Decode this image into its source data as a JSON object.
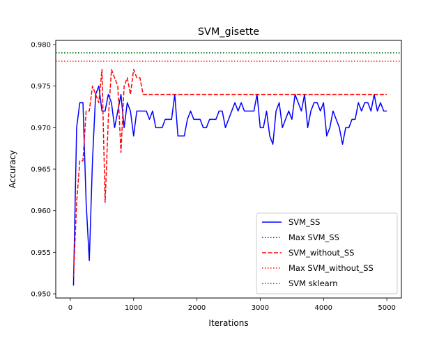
{
  "chart_data": {
    "type": "line",
    "title": "SVM_gisette",
    "xlabel": "Iterations",
    "ylabel": "Accuracy",
    "xlim": [
      -230,
      5230
    ],
    "ylim": [
      0.9495,
      0.9805
    ],
    "xticks": [
      0,
      1000,
      2000,
      3000,
      4000,
      5000
    ],
    "xtick_labels": [
      "0",
      "1000",
      "2000",
      "3000",
      "4000",
      "5000"
    ],
    "yticks": [
      0.95,
      0.955,
      0.96,
      0.965,
      0.97,
      0.975,
      0.98
    ],
    "ytick_labels": [
      "0.950",
      "0.955",
      "0.960",
      "0.965",
      "0.970",
      "0.975",
      "0.980"
    ],
    "grid": false,
    "legend_position": "bottom-right",
    "series": [
      {
        "name": "SVM_SS",
        "style": "solid",
        "color": "#0000ff",
        "x": [
          50,
          100,
          150,
          200,
          250,
          300,
          350,
          400,
          450,
          500,
          550,
          600,
          650,
          700,
          750,
          800,
          850,
          900,
          950,
          1000,
          1050,
          1100,
          1150,
          1200,
          1250,
          1300,
          1350,
          1400,
          1450,
          1500,
          1550,
          1600,
          1650,
          1700,
          1750,
          1800,
          1850,
          1900,
          1950,
          2000,
          2050,
          2100,
          2150,
          2200,
          2250,
          2300,
          2350,
          2400,
          2450,
          2500,
          2550,
          2600,
          2650,
          2700,
          2750,
          2800,
          2850,
          2900,
          2950,
          3000,
          3050,
          3100,
          3150,
          3200,
          3250,
          3300,
          3350,
          3400,
          3450,
          3500,
          3550,
          3600,
          3650,
          3700,
          3750,
          3800,
          3850,
          3900,
          3950,
          4000,
          4050,
          4100,
          4150,
          4200,
          4250,
          4300,
          4350,
          4400,
          4450,
          4500,
          4550,
          4600,
          4650,
          4700,
          4750,
          4800,
          4850,
          4900,
          4950,
          5000
        ],
        "values": [
          0.951,
          0.97,
          0.973,
          0.973,
          0.961,
          0.954,
          0.966,
          0.974,
          0.975,
          0.972,
          0.972,
          0.974,
          0.973,
          0.97,
          0.972,
          0.974,
          0.97,
          0.973,
          0.972,
          0.969,
          0.972,
          0.972,
          0.972,
          0.972,
          0.971,
          0.972,
          0.97,
          0.97,
          0.97,
          0.971,
          0.971,
          0.971,
          0.974,
          0.969,
          0.969,
          0.969,
          0.971,
          0.972,
          0.971,
          0.971,
          0.971,
          0.97,
          0.97,
          0.971,
          0.971,
          0.971,
          0.972,
          0.972,
          0.97,
          0.971,
          0.972,
          0.973,
          0.972,
          0.973,
          0.972,
          0.972,
          0.972,
          0.972,
          0.974,
          0.97,
          0.97,
          0.972,
          0.969,
          0.968,
          0.972,
          0.973,
          0.97,
          0.971,
          0.972,
          0.971,
          0.974,
          0.973,
          0.972,
          0.974,
          0.97,
          0.972,
          0.973,
          0.973,
          0.972,
          0.973,
          0.969,
          0.97,
          0.972,
          0.971,
          0.97,
          0.968,
          0.97,
          0.97,
          0.971,
          0.971,
          0.973,
          0.972,
          0.973,
          0.973,
          0.972,
          0.974,
          0.972,
          0.973,
          0.972,
          0.972
        ]
      },
      {
        "name": "Max SVM_SS",
        "style": "dotted",
        "color": "#0000ff",
        "constant": 0.979
      },
      {
        "name": "SVM_without_SS",
        "style": "dashed",
        "color": "#ff0000",
        "x": [
          50,
          100,
          150,
          200,
          250,
          300,
          350,
          400,
          450,
          500,
          550,
          600,
          650,
          700,
          750,
          800,
          850,
          900,
          950,
          1000,
          1050,
          1100,
          1150,
          1200,
          1250,
          1300,
          1350,
          1400,
          1450,
          1500,
          1550,
          1600,
          1650,
          1700,
          1750,
          1800,
          1850,
          1900,
          1950,
          2000,
          2050,
          2100,
          2150,
          2200,
          2250,
          2300,
          2350,
          2400,
          2450,
          2500,
          2550,
          2600,
          2650,
          2700,
          2750,
          2800,
          2850,
          2900,
          2950,
          3000,
          3050,
          3100,
          3150,
          3200,
          3250,
          3300,
          3350,
          3400,
          3450,
          3500,
          3550,
          3600,
          3650,
          3700,
          3750,
          3800,
          3850,
          3900,
          3950,
          4000,
          4050,
          4100,
          4150,
          4200,
          4250,
          4300,
          4350,
          4400,
          4450,
          4500,
          4550,
          4600,
          4650,
          4700,
          4750,
          4800,
          4850,
          4900,
          4950,
          5000
        ],
        "values": [
          0.952,
          0.961,
          0.966,
          0.966,
          0.972,
          0.972,
          0.975,
          0.974,
          0.973,
          0.977,
          0.961,
          0.971,
          0.977,
          0.976,
          0.975,
          0.967,
          0.975,
          0.976,
          0.974,
          0.977,
          0.976,
          0.976,
          0.974,
          0.974,
          0.974,
          0.974,
          0.974,
          0.974,
          0.974,
          0.974,
          0.974,
          0.974,
          0.974,
          0.974,
          0.974,
          0.974,
          0.974,
          0.974,
          0.974,
          0.974,
          0.974,
          0.974,
          0.974,
          0.974,
          0.974,
          0.974,
          0.974,
          0.974,
          0.974,
          0.974,
          0.974,
          0.974,
          0.974,
          0.974,
          0.974,
          0.974,
          0.974,
          0.974,
          0.974,
          0.974,
          0.974,
          0.974,
          0.974,
          0.974,
          0.974,
          0.974,
          0.974,
          0.974,
          0.974,
          0.974,
          0.974,
          0.974,
          0.974,
          0.974,
          0.974,
          0.974,
          0.974,
          0.974,
          0.974,
          0.974,
          0.974,
          0.974,
          0.974,
          0.974,
          0.974,
          0.974,
          0.974,
          0.974,
          0.974,
          0.974,
          0.974,
          0.974,
          0.974,
          0.974,
          0.974,
          0.974,
          0.974,
          0.974,
          0.974,
          0.974
        ]
      },
      {
        "name": "Max SVM_without_SS",
        "style": "dotted",
        "color": "#ff0000",
        "constant": 0.978
      },
      {
        "name": "SVM sklearn",
        "style": "dotted",
        "color": "#008000",
        "constant": 0.979
      }
    ]
  }
}
